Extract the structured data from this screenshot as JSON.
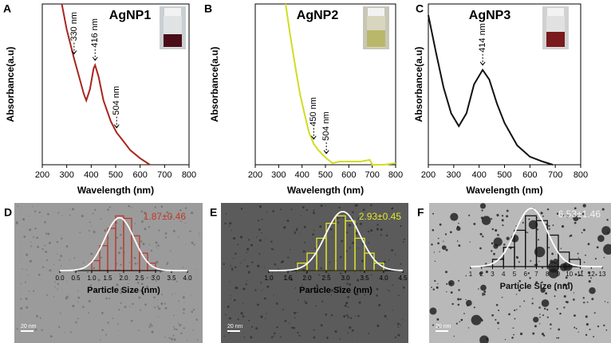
{
  "chart_data": [
    {
      "type": "line",
      "label": "A",
      "title": "AgNP1",
      "xlabel": "Wavelength (nm)",
      "ylabel": "Absorbance(a.u)",
      "color": "#a8261e",
      "x": [
        280,
        300,
        330,
        350,
        370,
        380,
        395,
        410,
        416,
        430,
        450,
        480,
        504,
        530,
        560,
        600,
        640
      ],
      "values": [
        1.0,
        0.84,
        0.66,
        0.55,
        0.44,
        0.4,
        0.47,
        0.6,
        0.62,
        0.55,
        0.4,
        0.27,
        0.2,
        0.15,
        0.09,
        0.04,
        0.0
      ],
      "xlim": [
        200,
        800
      ],
      "xticks": [
        200,
        300,
        400,
        500,
        600,
        700,
        800
      ],
      "ylim": [
        0,
        1
      ],
      "annotations": [
        {
          "text": "330 nm",
          "x": 330
        },
        {
          "text": "416 nm",
          "x": 416
        },
        {
          "text": "504 nm",
          "x": 504
        }
      ]
    },
    {
      "type": "line",
      "label": "B",
      "title": "AgNP2",
      "xlabel": "Wavelength (nm)",
      "ylabel": "Absorbance(a.u)",
      "color": "#d2dc22",
      "x": [
        330,
        350,
        370,
        390,
        410,
        430,
        450,
        470,
        490,
        504,
        530,
        560,
        600,
        650,
        690,
        700,
        750,
        800
      ],
      "values": [
        1.0,
        0.8,
        0.62,
        0.45,
        0.32,
        0.2,
        0.13,
        0.09,
        0.06,
        0.04,
        0.01,
        0.02,
        0.02,
        0.02,
        0.03,
        0.0,
        0.0,
        0.01
      ],
      "xlim": [
        200,
        800
      ],
      "xticks": [
        200,
        300,
        400,
        500,
        600,
        700,
        800
      ],
      "ylim": [
        0,
        1
      ],
      "annotations": [
        {
          "text": "450 nm",
          "x": 450
        },
        {
          "text": "504 nm",
          "x": 504
        }
      ]
    },
    {
      "type": "line",
      "label": "C",
      "title": "AgNP3",
      "xlabel": "Wavelength (nm)",
      "ylabel": "Absorbance(a.u)",
      "color": "#111111",
      "x": [
        200,
        230,
        260,
        290,
        320,
        350,
        380,
        414,
        440,
        470,
        500,
        550,
        600,
        650,
        690
      ],
      "values": [
        0.93,
        0.7,
        0.48,
        0.32,
        0.24,
        0.32,
        0.5,
        0.59,
        0.53,
        0.38,
        0.26,
        0.12,
        0.05,
        0.02,
        0.0
      ],
      "xlim": [
        200,
        800
      ],
      "xticks": [
        200,
        300,
        400,
        500,
        600,
        700,
        800
      ],
      "ylim": [
        0,
        1
      ],
      "annotations": [
        {
          "text": "414 nm",
          "x": 414
        }
      ]
    },
    {
      "type": "histogram",
      "label": "D",
      "xlabel": "Particle Size (nm)",
      "color": "#c0392b",
      "scale_bar": "20 nm",
      "bins": [
        1.0,
        1.25,
        1.5,
        1.75,
        2.0,
        2.25,
        2.5,
        2.75,
        3.0
      ],
      "counts": [
        4,
        10,
        17,
        22,
        21,
        14,
        7,
        3
      ],
      "xlim": [
        0,
        4
      ],
      "xticks": [
        {
          "value": 0,
          "label": "0.0"
        },
        0.5,
        {
          "value": 1,
          "label": "1.0"
        },
        1.5,
        {
          "value": 2,
          "label": "2.0"
        },
        2.5,
        {
          "value": 3,
          "label": "3.0"
        },
        3.5,
        {
          "value": 4,
          "label": "4.0"
        }
      ],
      "ylim": [
        0,
        24
      ],
      "fit": {
        "mean": 1.87,
        "sd": 0.46,
        "label": "1.87±0.46"
      }
    },
    {
      "type": "histogram",
      "label": "E",
      "xlabel": "Particle Size (nm)",
      "color": "#e3e62c",
      "scale_bar": "20 nm",
      "bins": [
        1.75,
        2.0,
        2.25,
        2.5,
        2.75,
        3.0,
        3.25,
        3.5,
        3.75,
        4.0
      ],
      "counts": [
        3,
        7,
        13,
        19,
        22,
        20,
        13,
        7,
        3
      ],
      "xlim": [
        1,
        4.5
      ],
      "xticks": [
        {
          "value": 1,
          "label": "1.0"
        },
        1.5,
        {
          "value": 2,
          "label": "2.0"
        },
        2.5,
        {
          "value": 3,
          "label": "3.0"
        },
        3.5,
        {
          "value": 4,
          "label": "4.0"
        },
        4.5
      ],
      "ylim": [
        0,
        24
      ],
      "fit": {
        "mean": 2.93,
        "sd": 0.45,
        "label": "2.93±0.45"
      }
    },
    {
      "type": "histogram",
      "label": "F",
      "xlabel": "Particle Size (nm)",
      "color": "#111111",
      "scale_bar": "20 nm",
      "bins": [
        3,
        4,
        5,
        6,
        7,
        8,
        9,
        10,
        11
      ],
      "counts": [
        3,
        8,
        15,
        21,
        19,
        13,
        6,
        3
      ],
      "xlim": [
        1,
        13
      ],
      "xticks": [
        1,
        2,
        3,
        4,
        5,
        6,
        7,
        8,
        9,
        10,
        11,
        12,
        13
      ],
      "ylim": [
        0,
        24
      ],
      "fit": {
        "mean": 6.53,
        "sd": 1.46,
        "label": "6.53±1.46"
      }
    }
  ]
}
